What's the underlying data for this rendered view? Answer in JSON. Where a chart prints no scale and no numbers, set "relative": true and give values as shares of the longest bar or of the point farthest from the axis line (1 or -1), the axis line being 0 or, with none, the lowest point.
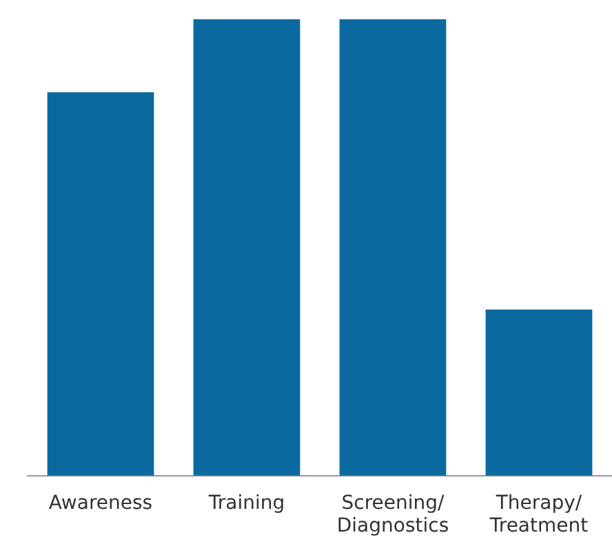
{
  "chart_data": {
    "type": "bar",
    "relative": true,
    "categories": [
      "Awareness",
      "Training",
      "Screening/Diagnostics",
      "Therapy/Treatment"
    ],
    "values": [
      0.84,
      1,
      1,
      0.364
    ],
    "color": "#0a6aa0",
    "grid": false,
    "legend": false
  }
}
